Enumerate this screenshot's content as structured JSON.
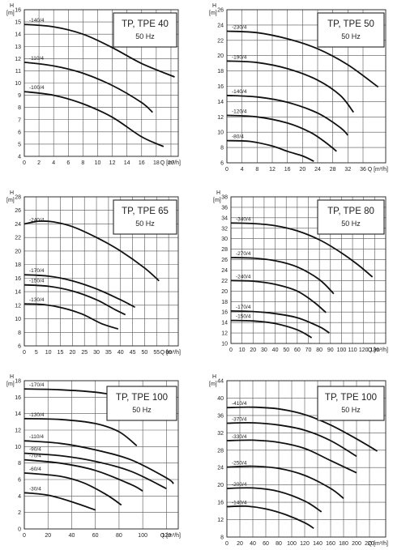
{
  "chart_data": [
    {
      "type": "line",
      "title": "TP, TPE 40",
      "subtitle": "50 Hz",
      "ylabel_top": "H",
      "ylabel_unit": "[m]",
      "xlabel": "Q [m³/h]",
      "xlim": [
        0,
        21
      ],
      "ylim": [
        4,
        16
      ],
      "xticks": [
        "0",
        "2",
        "4",
        "6",
        "8",
        "10",
        "12",
        "14",
        "16",
        "18",
        "20"
      ],
      "yticks": [
        "4",
        "5",
        "6",
        "7",
        "8",
        "9",
        "10",
        "11",
        "12",
        "13",
        "14",
        "15",
        "16"
      ],
      "series": [
        {
          "name": "-140/4",
          "x": [
            0,
            4,
            8,
            12,
            16,
            20.5
          ],
          "y": [
            14.8,
            14.6,
            14.0,
            12.9,
            11.6,
            10.5
          ]
        },
        {
          "name": "-110/4",
          "x": [
            0,
            4,
            8,
            12,
            16,
            17.5
          ],
          "y": [
            11.7,
            11.4,
            10.8,
            9.8,
            8.4,
            7.6
          ]
        },
        {
          "name": "-100/4",
          "x": [
            0,
            4,
            8,
            12,
            16,
            19
          ],
          "y": [
            9.3,
            9.0,
            8.3,
            7.2,
            5.6,
            4.8
          ]
        }
      ]
    },
    {
      "type": "line",
      "title": "TP, TPE 50",
      "subtitle": "50 Hz",
      "ylabel_top": "H",
      "ylabel_unit": "[m]",
      "xlabel": "Q [m³/h]",
      "xlim": [
        0,
        42
      ],
      "ylim": [
        6,
        26
      ],
      "xticks": [
        "0",
        "4",
        "8",
        "12",
        "16",
        "20",
        "24",
        "28",
        "32",
        "36"
      ],
      "yticks": [
        "6",
        "8",
        "10",
        "12",
        "14",
        "16",
        "18",
        "20",
        "22",
        "24",
        "26"
      ],
      "series": [
        {
          "name": "-230/4",
          "x": [
            0,
            8,
            16,
            24,
            32,
            40
          ],
          "y": [
            23.2,
            23.0,
            22.2,
            20.9,
            18.8,
            15.9
          ]
        },
        {
          "name": "-190/4",
          "x": [
            0,
            8,
            16,
            24,
            30,
            33.5
          ],
          "y": [
            19.3,
            19.1,
            18.3,
            16.8,
            14.8,
            12.6
          ]
        },
        {
          "name": "-140/4",
          "x": [
            0,
            8,
            16,
            24,
            30,
            32
          ],
          "y": [
            14.8,
            14.6,
            13.9,
            12.5,
            10.6,
            9.6
          ]
        },
        {
          "name": "-120/4",
          "x": [
            0,
            8,
            16,
            22,
            26,
            29
          ],
          "y": [
            12.2,
            12.0,
            11.2,
            10.0,
            8.7,
            7.5
          ]
        },
        {
          "name": "-80/4",
          "x": [
            0,
            6,
            12,
            16,
            20,
            23
          ],
          "y": [
            8.9,
            8.8,
            8.2,
            7.5,
            6.9,
            6.2
          ]
        }
      ]
    },
    {
      "type": "line",
      "title": "TP, TPE 65",
      "subtitle": "50 Hz",
      "ylabel_top": "H",
      "ylabel_unit": "[m]",
      "xlabel": "Q [m³/h]",
      "xlim": [
        0,
        64
      ],
      "ylim": [
        6,
        28
      ],
      "xticks": [
        "0",
        "5",
        "10",
        "15",
        "20",
        "25",
        "30",
        "35",
        "40",
        "45",
        "50",
        "55",
        "60"
      ],
      "yticks": [
        "6",
        "8",
        "10",
        "12",
        "14",
        "16",
        "18",
        "20",
        "22",
        "24",
        "26",
        "28"
      ],
      "series": [
        {
          "name": "-240/4",
          "x": [
            0,
            6,
            12,
            20,
            30,
            40,
            50,
            56
          ],
          "y": [
            24.0,
            24.4,
            24.3,
            23.6,
            22.0,
            20.0,
            17.5,
            15.6
          ]
        },
        {
          "name": "-170/4",
          "x": [
            0,
            10,
            20,
            30,
            40,
            46
          ],
          "y": [
            16.5,
            16.3,
            15.6,
            14.4,
            12.8,
            11.7
          ]
        },
        {
          "name": "-150/4",
          "x": [
            0,
            10,
            20,
            30,
            38,
            42
          ],
          "y": [
            15.0,
            14.8,
            14.1,
            12.8,
            11.3,
            10.6
          ]
        },
        {
          "name": "-130/4",
          "x": [
            0,
            8,
            16,
            24,
            32,
            39
          ],
          "y": [
            12.2,
            12.1,
            11.6,
            10.7,
            9.3,
            8.5
          ]
        }
      ]
    },
    {
      "type": "line",
      "title": "TP, TPE 80",
      "subtitle": "50 Hz",
      "ylabel_top": "H",
      "ylabel_unit": "[m]",
      "xlabel": "Q [m³/h]",
      "xlim": [
        0,
        140
      ],
      "ylim": [
        10,
        38
      ],
      "xticks": [
        "0",
        "10",
        "20",
        "30",
        "40",
        "50",
        "60",
        "70",
        "80",
        "90",
        "100",
        "110",
        "120",
        "130"
      ],
      "yticks": [
        "10",
        "12",
        "14",
        "16",
        "18",
        "20",
        "22",
        "24",
        "26",
        "28",
        "30",
        "32",
        "34",
        "36",
        "38"
      ],
      "series": [
        {
          "name": "-340/4",
          "x": [
            0,
            20,
            40,
            60,
            80,
            100,
            115,
            128
          ],
          "y": [
            33.0,
            32.9,
            32.5,
            31.5,
            29.8,
            27.3,
            25.0,
            22.7
          ]
        },
        {
          "name": "-270/4",
          "x": [
            0,
            20,
            40,
            60,
            80,
            93
          ],
          "y": [
            26.4,
            26.3,
            25.8,
            24.6,
            22.2,
            19.5
          ]
        },
        {
          "name": "-240/4",
          "x": [
            0,
            20,
            40,
            60,
            75,
            86
          ],
          "y": [
            22.0,
            21.9,
            21.3,
            20.0,
            17.9,
            15.9
          ]
        },
        {
          "name": "-170/4",
          "x": [
            0,
            20,
            40,
            60,
            80,
            89
          ],
          "y": [
            16.2,
            16.1,
            15.7,
            14.9,
            13.2,
            12.0
          ]
        },
        {
          "name": "-150/4",
          "x": [
            0,
            20,
            40,
            60,
            73
          ],
          "y": [
            14.4,
            14.3,
            13.8,
            12.6,
            11.1
          ]
        }
      ]
    },
    {
      "type": "line",
      "title": "TP, TPE 100",
      "subtitle": "50 Hz",
      "ylabel_top": "H",
      "ylabel_unit": "[m]",
      "xlabel": "Q [m³/h]",
      "xlim": [
        0,
        130
      ],
      "ylim": [
        0,
        18
      ],
      "xticks": [
        "0",
        "20",
        "40",
        "60",
        "80",
        "100",
        "120"
      ],
      "yticks": [
        "0",
        "2",
        "4",
        "6",
        "8",
        "10",
        "12",
        "14",
        "16",
        "18"
      ],
      "series": [
        {
          "name": "-170/4",
          "x": [
            0,
            30,
            60,
            80,
            100,
            115
          ],
          "y": [
            17.0,
            16.9,
            16.6,
            16.1,
            15.0,
            13.6
          ]
        },
        {
          "name": "-130/4",
          "x": [
            0,
            30,
            60,
            80,
            95
          ],
          "y": [
            13.4,
            13.3,
            12.8,
            11.8,
            10.1
          ]
        },
        {
          "name": "-110/4",
          "x": [
            0,
            30,
            60,
            90,
            120,
            126
          ],
          "y": [
            10.7,
            10.4,
            9.6,
            8.4,
            6.2,
            5.5
          ]
        },
        {
          "name": "-90/4",
          "x": [
            0,
            30,
            60,
            90,
            120
          ],
          "y": [
            9.2,
            8.9,
            8.2,
            7.0,
            4.9
          ]
        },
        {
          "name": "-70/4",
          "x": [
            0,
            30,
            60,
            90,
            100
          ],
          "y": [
            8.4,
            8.0,
            7.1,
            5.4,
            4.6
          ]
        },
        {
          "name": "-60/4",
          "x": [
            0,
            30,
            50,
            70,
            82
          ],
          "y": [
            6.8,
            6.4,
            5.6,
            4.1,
            2.9
          ]
        },
        {
          "name": "-30/4",
          "x": [
            0,
            20,
            40,
            60
          ],
          "y": [
            4.4,
            4.1,
            3.3,
            2.3
          ]
        }
      ]
    },
    {
      "type": "line",
      "title": "TP, TPE 100",
      "subtitle": "50 Hz",
      "ylabel_top": "H",
      "ylabel_unit": "[m]",
      "xlabel": "Q [m³/h]",
      "xlim": [
        0,
        245
      ],
      "ylim": [
        8,
        44
      ],
      "xticks": [
        "0",
        "20",
        "40",
        "60",
        "80",
        "100",
        "120",
        "140",
        "160",
        "180",
        "200",
        "220"
      ],
      "yticks": [
        "8",
        "12",
        "16",
        "20",
        "24",
        "28",
        "32",
        "36",
        "40",
        "44"
      ],
      "series": [
        {
          "name": "-410/4",
          "x": [
            0,
            40,
            80,
            120,
            160,
            200,
            232
          ],
          "y": [
            37.8,
            37.9,
            37.5,
            36.2,
            33.8,
            30.6,
            27.8
          ]
        },
        {
          "name": "-370/4",
          "x": [
            0,
            40,
            80,
            120,
            160,
            200
          ],
          "y": [
            34.2,
            34.3,
            33.8,
            32.6,
            30.2,
            26.6
          ]
        },
        {
          "name": "-330/4",
          "x": [
            0,
            40,
            80,
            120,
            160,
            200
          ],
          "y": [
            30.2,
            30.3,
            29.8,
            28.4,
            25.6,
            22.8
          ]
        },
        {
          "name": "-250/4",
          "x": [
            0,
            40,
            80,
            120,
            160,
            180
          ],
          "y": [
            24.1,
            24.3,
            23.8,
            22.2,
            19.2,
            16.9
          ]
        },
        {
          "name": "-200/4",
          "x": [
            0,
            40,
            80,
            120,
            146
          ],
          "y": [
            19.2,
            19.3,
            18.5,
            16.3,
            13.8
          ]
        },
        {
          "name": "-140/4",
          "x": [
            0,
            30,
            60,
            90,
            120,
            134
          ],
          "y": [
            15.0,
            15.1,
            14.5,
            13.2,
            11.3,
            10.0
          ]
        }
      ]
    }
  ]
}
